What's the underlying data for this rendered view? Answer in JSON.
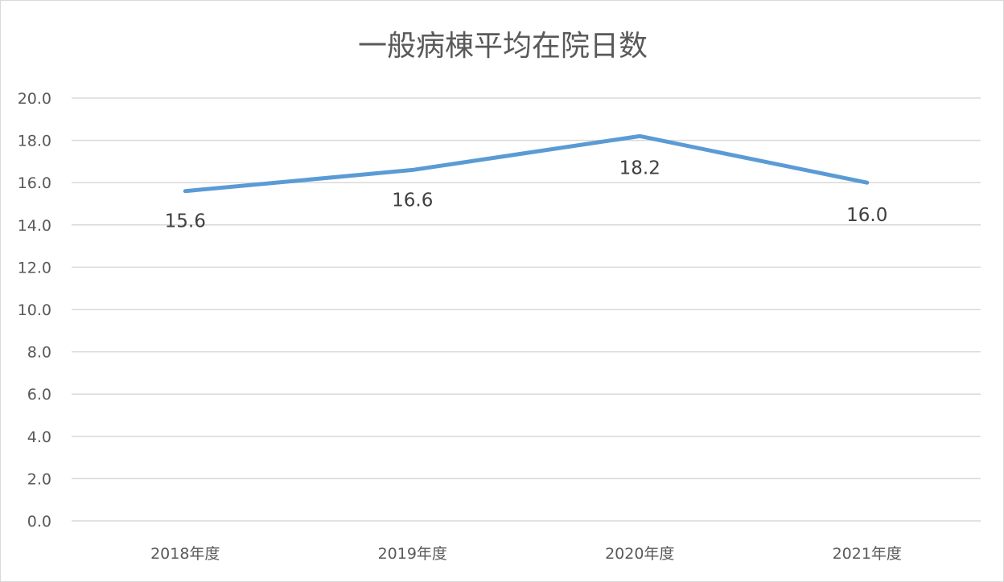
{
  "chart_data": {
    "type": "line",
    "title": "一般病棟平均在院日数",
    "categories": [
      "2018年度",
      "2019年度",
      "2020年度",
      "2021年度"
    ],
    "series": [
      {
        "values": [
          15.6,
          16.6,
          18.2,
          16.0
        ],
        "data_labels": [
          "15.6",
          "16.6",
          "18.2",
          "16.0"
        ],
        "color": "#5b9bd5"
      }
    ],
    "y_ticks": [
      "0.0",
      "2.0",
      "4.0",
      "6.0",
      "8.0",
      "10.0",
      "12.0",
      "14.0",
      "16.0",
      "18.0",
      "20.0"
    ],
    "ylim": [
      0,
      20
    ],
    "grid": true,
    "legend": "none",
    "xlabel": "",
    "ylabel": ""
  }
}
